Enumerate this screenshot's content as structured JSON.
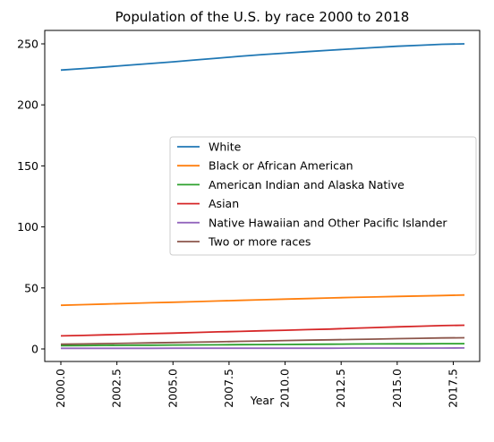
{
  "chart_data": {
    "type": "line",
    "title": "Population of the U.S. by race 2000 to 2018",
    "xlabel": "Year",
    "ylabel": "",
    "xlim": [
      2000,
      2018
    ],
    "ylim": [
      0,
      250
    ],
    "x_ticks": [
      "2000.0",
      "2002.5",
      "2005.0",
      "2007.5",
      "2010.0",
      "2012.5",
      "2015.0",
      "2017.5"
    ],
    "y_ticks": [
      "0",
      "50",
      "100",
      "150",
      "200",
      "250"
    ],
    "grid": false,
    "legend_position": "center-right",
    "x": [
      2000,
      2001,
      2002,
      2003,
      2004,
      2005,
      2006,
      2007,
      2008,
      2009,
      2010,
      2011,
      2012,
      2013,
      2014,
      2015,
      2016,
      2017,
      2018
    ],
    "series": [
      {
        "name": "White",
        "color": "#1f77b4",
        "values": [
          228.5,
          229.8,
          231.1,
          232.5,
          233.9,
          235.3,
          236.8,
          238.3,
          239.8,
          241.2,
          242.4,
          243.6,
          244.8,
          245.9,
          247.0,
          248.0,
          248.8,
          249.6,
          250.0
        ]
      },
      {
        "name": "Black or African American",
        "color": "#ff7f0e",
        "values": [
          35.8,
          36.3,
          36.8,
          37.3,
          37.8,
          38.3,
          38.8,
          39.3,
          39.8,
          40.3,
          40.8,
          41.3,
          41.8,
          42.2,
          42.6,
          43.0,
          43.4,
          43.8,
          44.2
        ]
      },
      {
        "name": "American Indian and Alaska Native",
        "color": "#2ca02c",
        "values": [
          2.7,
          2.8,
          2.9,
          3.0,
          3.1,
          3.2,
          3.3,
          3.4,
          3.5,
          3.6,
          3.7,
          3.8,
          3.9,
          4.0,
          4.1,
          4.2,
          4.2,
          4.3,
          4.3
        ]
      },
      {
        "name": "Asian",
        "color": "#d62728",
        "values": [
          10.7,
          11.1,
          11.6,
          12.0,
          12.5,
          13.0,
          13.5,
          14.0,
          14.4,
          14.9,
          15.3,
          15.8,
          16.3,
          16.9,
          17.5,
          18.1,
          18.6,
          19.1,
          19.4
        ]
      },
      {
        "name": "Native Hawaiian and Other Pacific Islander",
        "color": "#9467bd",
        "values": [
          0.5,
          0.5,
          0.5,
          0.5,
          0.5,
          0.6,
          0.6,
          0.6,
          0.6,
          0.6,
          0.6,
          0.6,
          0.6,
          0.7,
          0.7,
          0.7,
          0.7,
          0.7,
          0.8
        ]
      },
      {
        "name": "Two or more races",
        "color": "#8c564b",
        "values": [
          3.9,
          4.1,
          4.4,
          4.7,
          5.0,
          5.3,
          5.6,
          5.9,
          6.2,
          6.5,
          6.9,
          7.2,
          7.5,
          7.8,
          8.1,
          8.4,
          8.7,
          9.0,
          9.2
        ]
      }
    ]
  }
}
